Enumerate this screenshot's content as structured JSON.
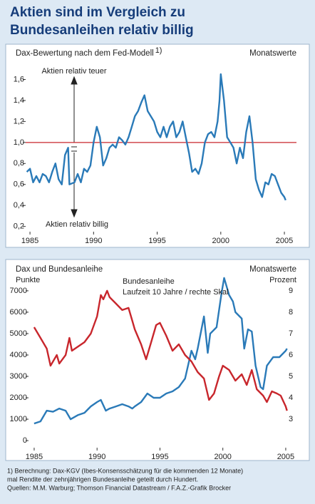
{
  "title": [
    "Aktien sind im Vergleich zu",
    "Bundesanleihen relativ billig"
  ],
  "chart_data": [
    {
      "type": "line",
      "title": "Dax-Bewertung nach dem Fed-Modell",
      "title_note": "1)",
      "subtitle": "Monatswerte",
      "annotations": [
        "Aktien relativ teuer",
        "Aktien relativ billig"
      ],
      "hline": {
        "value": 1.0,
        "color": "#c8262c"
      },
      "xlim": [
        1984.66,
        2005.95
      ],
      "xticks": [
        1985,
        1990,
        1995,
        2000,
        2005
      ],
      "ylim": [
        0.15,
        1.78
      ],
      "yticks": [
        {
          "value": 0.2,
          "label": "0,2"
        },
        {
          "value": 0.4,
          "label": "0,4"
        },
        {
          "value": 0.6,
          "label": "0,6"
        },
        {
          "value": 0.8,
          "label": "0,8"
        },
        {
          "value": 1.0,
          "label": "1,0"
        },
        {
          "value": 1.2,
          "label": "1,2"
        },
        {
          "value": 1.4,
          "label": "1,4"
        },
        {
          "value": 1.6,
          "label": "1,6"
        }
      ],
      "x": [
        1984.75,
        1985,
        1985.25,
        1985.5,
        1985.75,
        1986,
        1986.25,
        1986.5,
        1986.75,
        1987,
        1987.25,
        1987.5,
        1987.75,
        1988,
        1988.1,
        1988.5,
        1988.75,
        1989,
        1989.25,
        1989.5,
        1989.75,
        1990,
        1990.25,
        1990.5,
        1990.75,
        1991,
        1991.25,
        1991.5,
        1991.75,
        1992,
        1992.25,
        1992.5,
        1992.75,
        1993,
        1993.25,
        1993.5,
        1993.75,
        1994,
        1994.25,
        1994.5,
        1994.75,
        1995,
        1995.25,
        1995.5,
        1995.75,
        1996,
        1996.25,
        1996.5,
        1996.75,
        1997,
        1997.25,
        1997.5,
        1997.75,
        1998,
        1998.25,
        1998.5,
        1998.75,
        1999,
        1999.25,
        1999.5,
        1999.75,
        1999.9,
        2000,
        2000.25,
        2000.5,
        2000.75,
        2001,
        2001.25,
        2001.5,
        2001.75,
        2002,
        2002.25,
        2002.5,
        2002.75,
        2003,
        2003.25,
        2003.5,
        2003.75,
        2004,
        2004.25,
        2004.5,
        2004.75,
        2005,
        2005.1
      ],
      "series": [
        {
          "color": "#2a7ab8",
          "values": [
            0.72,
            0.75,
            0.62,
            0.68,
            0.62,
            0.7,
            0.68,
            0.62,
            0.72,
            0.8,
            0.65,
            0.6,
            0.88,
            0.95,
            0.6,
            0.62,
            0.7,
            0.62,
            0.75,
            0.72,
            0.78,
            1.0,
            1.15,
            1.05,
            0.78,
            0.85,
            0.95,
            0.98,
            0.95,
            1.05,
            1.02,
            0.98,
            1.05,
            1.15,
            1.25,
            1.3,
            1.38,
            1.45,
            1.3,
            1.25,
            1.2,
            1.1,
            1.05,
            1.15,
            1.05,
            1.15,
            1.2,
            1.05,
            1.1,
            1.2,
            1.05,
            0.9,
            0.72,
            0.75,
            0.7,
            0.8,
            1.0,
            1.08,
            1.1,
            1.05,
            1.2,
            1.4,
            1.65,
            1.4,
            1.05,
            1.0,
            0.95,
            0.8,
            0.95,
            0.85,
            1.1,
            1.25,
            1.0,
            0.65,
            0.55,
            0.48,
            0.62,
            0.6,
            0.7,
            0.68,
            0.6,
            0.52,
            0.48,
            0.45
          ]
        }
      ]
    },
    {
      "type": "line",
      "title": "Dax und Bundesanleihe",
      "subtitle": "Monatswerte",
      "ylabel": "Punkte",
      "y2label": "Prozent",
      "annotations": [
        "Laufzeit 10 Jahre / rechte Skal"
      ],
      "xlim": [
        1984.55,
        2006.08
      ],
      "xticks": [
        1985,
        1990,
        1995,
        2000,
        2005
      ],
      "ylim": [
        -330,
        7430
      ],
      "yticks": [
        0,
        1000,
        2000,
        3000,
        4000,
        5000,
        6000,
        7000
      ],
      "y2lim": [
        1.67,
        9.43
      ],
      "y2ticks": [
        3,
        4,
        5,
        6,
        7,
        8,
        9
      ],
      "series": [
        {
          "color": "#2a7ab8",
          "x": [
            1985,
            1985.5,
            1986,
            1986.5,
            1987,
            1987.5,
            1987.9,
            1988.5,
            1989,
            1989.5,
            1990,
            1990.3,
            1990.7,
            1991,
            1991.5,
            1992,
            1992.5,
            1992.8,
            1993,
            1993.5,
            1994,
            1994.5,
            1995,
            1995.5,
            1996,
            1996.5,
            1997,
            1997.5,
            1997.8,
            1998,
            1998.5,
            1998.8,
            1999,
            1999.5,
            1999.9,
            2000.1,
            2000.5,
            2000.8,
            2001,
            2001.5,
            2001.7,
            2002,
            2002.3,
            2002.6,
            2003,
            2003.2,
            2003.5,
            2004,
            2004.5,
            2005,
            2005.1
          ],
          "values": [
            800,
            900,
            1400,
            1350,
            1500,
            1400,
            1000,
            1200,
            1300,
            1600,
            1800,
            1900,
            1400,
            1500,
            1600,
            1700,
            1600,
            1500,
            1600,
            1800,
            2200,
            2000,
            2000,
            2200,
            2300,
            2500,
            2900,
            4200,
            3800,
            4300,
            5800,
            4100,
            5000,
            5300,
            6900,
            7600,
            6800,
            6500,
            6000,
            5700,
            4300,
            5200,
            5100,
            3500,
            2500,
            2400,
            3500,
            3900,
            3900,
            4200,
            4300
          ]
        },
        {
          "name": "Bundesanleihe",
          "color": "#c8262c",
          "axis": "y2",
          "x": [
            1985,
            1985.5,
            1986,
            1986.3,
            1986.8,
            1987,
            1987.5,
            1987.8,
            1988,
            1988.5,
            1989,
            1989.5,
            1990,
            1990.3,
            1990.5,
            1990.8,
            1991,
            1991.5,
            1992,
            1992.5,
            1992.8,
            1993,
            1993.5,
            1993.9,
            1994.3,
            1994.7,
            1995,
            1995.5,
            1996,
            1996.5,
            1997,
            1997.5,
            1998,
            1998.5,
            1998.9,
            1999.3,
            1999.7,
            2000,
            2000.5,
            2001,
            2001.5,
            2001.9,
            2002.3,
            2002.7,
            2003.2,
            2003.5,
            2003.9,
            2004.3,
            2004.6,
            2005,
            2005.1
          ],
          "values": [
            7.3,
            6.8,
            6.3,
            5.5,
            6.0,
            5.6,
            6.0,
            6.8,
            6.2,
            6.4,
            6.6,
            7.0,
            7.8,
            8.8,
            8.6,
            9.0,
            8.7,
            8.4,
            8.1,
            8.2,
            7.6,
            7.2,
            6.5,
            5.8,
            6.6,
            7.4,
            7.5,
            6.9,
            6.2,
            6.5,
            6.0,
            5.7,
            5.2,
            4.9,
            3.9,
            4.2,
            5.0,
            5.5,
            5.3,
            4.8,
            5.1,
            4.6,
            5.3,
            4.4,
            4.1,
            3.8,
            4.3,
            4.2,
            4.1,
            3.6,
            3.4
          ]
        }
      ]
    }
  ],
  "footnote": [
    "1) Berechnung: Dax-KGV (Ibes-Konsensschätzung für die kommenden 12 Monate)",
    "mal Rendite der zehnjährigen Bundesanleihe geteilt durch Hundert."
  ],
  "source": "Quellen: M.M. Warburg; Thomson Financial Datastream / F.A.Z.-Grafik Brocker"
}
